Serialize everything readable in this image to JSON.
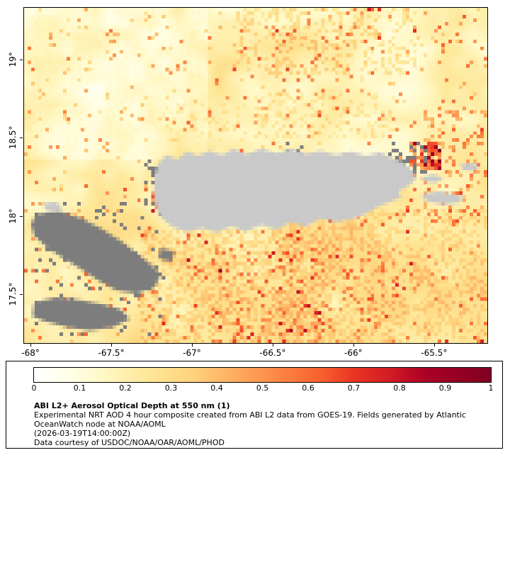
{
  "page": {
    "background": "#ffffff"
  },
  "map": {
    "axis_color": "#000000",
    "x_ticks": [
      {
        "label": "-68°",
        "lon": -68
      },
      {
        "label": "-67.5°",
        "lon": -67.5
      },
      {
        "label": "-67°",
        "lon": -67
      },
      {
        "label": "-66.5°",
        "lon": -66.5
      },
      {
        "label": "-66°",
        "lon": -66
      },
      {
        "label": "-65.5°",
        "lon": -65.5
      }
    ],
    "y_ticks": [
      {
        "label": "19°",
        "lat": 19
      },
      {
        "label": "18.5°",
        "lat": 18.5
      },
      {
        "label": "18°",
        "lat": 18
      },
      {
        "label": "17.5°",
        "lat": 17.5
      }
    ]
  },
  "legend": {
    "title": "ABI L2+ Aerosol Optical Depth at 550 nm (1)",
    "lines": [
      "Experimental NRT AOD 4 hour composite created from ABI L2 data from GOES-19. Fields generated by Atlantic",
      "OceanWatch node at NOAA/AOML",
      "(2026-03-19T14:00:00Z)",
      "Data courtesy of USDOC/NOAA/OAR/AOML/PHOD"
    ],
    "colorbar_ticks": [
      "0",
      "0.1",
      "0.2",
      "0.3",
      "0.4",
      "0.5",
      "0.6",
      "0.7",
      "0.8",
      "0.9",
      "1"
    ]
  },
  "chart_data": {
    "type": "heatmap",
    "title": "ABI L2+ Aerosol Optical Depth at 550 nm (1)",
    "x_range": [
      -68.04,
      -65.17
    ],
    "y_range": [
      17.19,
      19.33
    ],
    "x_tick_values": [
      -68,
      -67.5,
      -67,
      -66.5,
      -66,
      -65.5
    ],
    "y_tick_values": [
      19,
      18.5,
      18,
      17.5
    ],
    "colorbar": {
      "min": 0,
      "max": 1,
      "tick_values": [
        0,
        0.1,
        0.2,
        0.3,
        0.4,
        0.5,
        0.6,
        0.7,
        0.8,
        0.9,
        1
      ],
      "stops": [
        {
          "v": 0.0,
          "c": "#ffffff"
        },
        {
          "v": 0.08,
          "c": "#ffffe8"
        },
        {
          "v": 0.16,
          "c": "#fff6c0"
        },
        {
          "v": 0.25,
          "c": "#fee798"
        },
        {
          "v": 0.35,
          "c": "#fed27c"
        },
        {
          "v": 0.45,
          "c": "#fda85c"
        },
        {
          "v": 0.55,
          "c": "#fc8040"
        },
        {
          "v": 0.63,
          "c": "#f8602f"
        },
        {
          "v": 0.7,
          "c": "#ea3423"
        },
        {
          "v": 0.78,
          "c": "#d01c24"
        },
        {
          "v": 0.86,
          "c": "#ab0026"
        },
        {
          "v": 1.0,
          "c": "#7f0023"
        }
      ]
    },
    "land_color": "#c9c9c9",
    "missing_color": "#7d7d7d",
    "typical_ocean_aod_range": [
      0.05,
      0.35
    ],
    "grid": {
      "cols": 131,
      "rows": 95
    },
    "base_field": {
      "offset": 0.05,
      "coarse": 0.16,
      "fine": 0.1,
      "south_gradient": 0.07,
      "speckle_p": 0.05
    },
    "hotspots": [
      {
        "x": 0.0,
        "y": 0.0,
        "w": 0.4,
        "h": 0.45,
        "add": -0.06,
        "p": 1.0
      },
      {
        "x": 0.45,
        "y": 0.0,
        "w": 0.4,
        "h": 0.2,
        "add": 0.16,
        "p": 0.28
      },
      {
        "x": 0.25,
        "y": 0.66,
        "w": 0.4,
        "h": 0.34,
        "add": 0.14,
        "p": 0.45
      },
      {
        "x": 0.55,
        "y": 0.6,
        "w": 0.45,
        "h": 0.4,
        "add": 0.12,
        "p": 0.4
      },
      {
        "x": 0.35,
        "y": 0.72,
        "w": 0.45,
        "h": 0.28,
        "add": 0.3,
        "p": 0.1
      },
      {
        "x": 0.835,
        "y": 0.395,
        "w": 0.065,
        "h": 0.085,
        "add": 0.55,
        "p": 0.75
      },
      {
        "x": 0.86,
        "y": 0.3,
        "w": 0.14,
        "h": 0.34,
        "add": 0.35,
        "p": 0.16
      },
      {
        "x": 0.272,
        "y": 0.552,
        "w": 0.022,
        "h": 0.055,
        "add": 0.55,
        "p": 0.9
      },
      {
        "x": 0.5,
        "y": 0.25,
        "w": 0.3,
        "h": 0.14,
        "add": 0.12,
        "p": 0.25
      },
      {
        "x": 0.3,
        "y": 0.28,
        "w": 0.25,
        "h": 0.12,
        "add": 0.1,
        "p": 0.18
      }
    ],
    "land_polygons": {
      "puerto_rico": [
        [
          0.283,
          0.5
        ],
        [
          0.29,
          0.462
        ],
        [
          0.308,
          0.44
        ],
        [
          0.33,
          0.452
        ],
        [
          0.352,
          0.428
        ],
        [
          0.375,
          0.442
        ],
        [
          0.4,
          0.425
        ],
        [
          0.428,
          0.44
        ],
        [
          0.452,
          0.422
        ],
        [
          0.48,
          0.438
        ],
        [
          0.512,
          0.42
        ],
        [
          0.545,
          0.435
        ],
        [
          0.575,
          0.422
        ],
        [
          0.608,
          0.438
        ],
        [
          0.64,
          0.425
        ],
        [
          0.672,
          0.44
        ],
        [
          0.705,
          0.428
        ],
        [
          0.738,
          0.442
        ],
        [
          0.768,
          0.432
        ],
        [
          0.795,
          0.448
        ],
        [
          0.82,
          0.462
        ],
        [
          0.84,
          0.488
        ],
        [
          0.846,
          0.51
        ],
        [
          0.83,
          0.532
        ],
        [
          0.808,
          0.548
        ],
        [
          0.815,
          0.565
        ],
        [
          0.79,
          0.578
        ],
        [
          0.762,
          0.595
        ],
        [
          0.735,
          0.615
        ],
        [
          0.705,
          0.632
        ],
        [
          0.672,
          0.64
        ],
        [
          0.64,
          0.63
        ],
        [
          0.608,
          0.652
        ],
        [
          0.575,
          0.64
        ],
        [
          0.545,
          0.662
        ],
        [
          0.512,
          0.648
        ],
        [
          0.48,
          0.668
        ],
        [
          0.448,
          0.652
        ],
        [
          0.415,
          0.67
        ],
        [
          0.385,
          0.658
        ],
        [
          0.352,
          0.668
        ],
        [
          0.322,
          0.655
        ],
        [
          0.3,
          0.632
        ],
        [
          0.286,
          0.6
        ],
        [
          0.28,
          0.555
        ]
      ],
      "mona": [
        [
          0.04,
          0.585
        ],
        [
          0.065,
          0.578
        ],
        [
          0.082,
          0.59
        ],
        [
          0.072,
          0.608
        ],
        [
          0.048,
          0.605
        ]
      ],
      "east_islet": [
        [
          0.858,
          0.505
        ],
        [
          0.885,
          0.498
        ],
        [
          0.905,
          0.508
        ],
        [
          0.89,
          0.522
        ],
        [
          0.865,
          0.518
        ]
      ],
      "vieques": [
        [
          0.862,
          0.555
        ],
        [
          0.895,
          0.548
        ],
        [
          0.925,
          0.555
        ],
        [
          0.952,
          0.565
        ],
        [
          0.935,
          0.582
        ],
        [
          0.905,
          0.588
        ],
        [
          0.875,
          0.578
        ],
        [
          0.86,
          0.568
        ]
      ],
      "culebra": [
        [
          0.94,
          0.468
        ],
        [
          0.965,
          0.462
        ],
        [
          0.985,
          0.472
        ],
        [
          0.972,
          0.488
        ],
        [
          0.948,
          0.485
        ]
      ]
    },
    "missing_polygons": [
      [
        [
          0.025,
          0.615
        ],
        [
          0.075,
          0.605
        ],
        [
          0.125,
          0.628
        ],
        [
          0.165,
          0.658
        ],
        [
          0.205,
          0.692
        ],
        [
          0.24,
          0.728
        ],
        [
          0.272,
          0.762
        ],
        [
          0.296,
          0.795
        ],
        [
          0.282,
          0.835
        ],
        [
          0.243,
          0.852
        ],
        [
          0.198,
          0.842
        ],
        [
          0.16,
          0.812
        ],
        [
          0.122,
          0.78
        ],
        [
          0.085,
          0.748
        ],
        [
          0.05,
          0.716
        ],
        [
          0.022,
          0.682
        ],
        [
          0.015,
          0.648
        ]
      ],
      [
        [
          0.022,
          0.878
        ],
        [
          0.068,
          0.862
        ],
        [
          0.118,
          0.87
        ],
        [
          0.168,
          0.885
        ],
        [
          0.208,
          0.9
        ],
        [
          0.228,
          0.928
        ],
        [
          0.192,
          0.952
        ],
        [
          0.142,
          0.962
        ],
        [
          0.092,
          0.952
        ],
        [
          0.048,
          0.938
        ],
        [
          0.018,
          0.922
        ]
      ],
      [
        [
          0.295,
          0.715
        ],
        [
          0.325,
          0.73
        ],
        [
          0.318,
          0.758
        ],
        [
          0.29,
          0.748
        ]
      ]
    ],
    "gray_speckle": [
      {
        "x": 0.79,
        "y": 0.41,
        "w": 0.075,
        "h": 0.095,
        "p": 0.28
      },
      {
        "x": 0.03,
        "y": 0.57,
        "w": 0.28,
        "h": 0.4,
        "p": 0.07
      },
      {
        "x": 0.262,
        "y": 0.462,
        "w": 0.028,
        "h": 0.055,
        "p": 0.35
      },
      {
        "x": 0.57,
        "y": 0.4,
        "w": 0.04,
        "h": 0.04,
        "p": 0.2
      }
    ]
  }
}
